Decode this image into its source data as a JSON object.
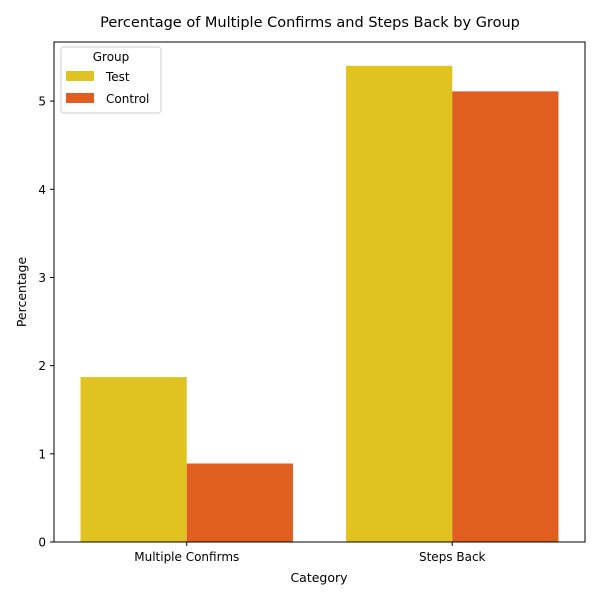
{
  "chart_data": {
    "type": "bar",
    "title": "Percentage of Multiple Confirms and Steps Back by Group",
    "xlabel": "Category",
    "ylabel": "Percentage",
    "categories": [
      "Multiple Confirms",
      "Steps Back"
    ],
    "series": [
      {
        "name": "Test",
        "values": [
          1.87,
          5.4
        ],
        "color": "#e0c320"
      },
      {
        "name": "Control",
        "values": [
          0.89,
          5.11
        ],
        "color": "#e05e1f"
      }
    ],
    "ylim": [
      0,
      5.67
    ],
    "yticks": [
      0,
      1,
      2,
      3,
      4,
      5
    ],
    "legend": {
      "title": "Group",
      "position": "top-left"
    },
    "grid": false
  }
}
